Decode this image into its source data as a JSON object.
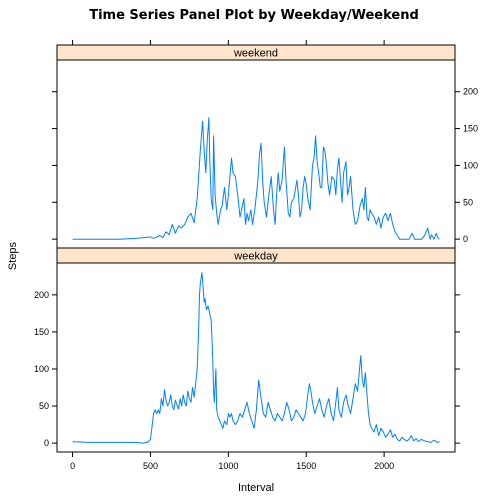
{
  "chart_data": {
    "type": "line",
    "title": "Time Series Panel Plot by Weekday/Weekend",
    "xlabel": "Interval",
    "ylabel": "Steps",
    "xlim": [
      -100,
      2455
    ],
    "ylim": [
      -12,
      243
    ],
    "x_ticks": [
      0,
      500,
      1000,
      1500,
      2000
    ],
    "y_ticks": [
      0,
      50,
      100,
      150,
      200
    ],
    "line_color": "#0080ff",
    "strip_color": "#ffe5cc",
    "layout": "two panels stacked, shared x axis; y tick labels alternate sides (weekday panel left, weekend panel right)",
    "panels": [
      {
        "name": "weekend",
        "points": [
          [
            0,
            0
          ],
          [
            100,
            0
          ],
          [
            200,
            0
          ],
          [
            300,
            0
          ],
          [
            400,
            1
          ],
          [
            450,
            2
          ],
          [
            500,
            3
          ],
          [
            520,
            1
          ],
          [
            540,
            3
          ],
          [
            560,
            5
          ],
          [
            580,
            2
          ],
          [
            600,
            10
          ],
          [
            620,
            6
          ],
          [
            640,
            20
          ],
          [
            660,
            8
          ],
          [
            680,
            18
          ],
          [
            700,
            15
          ],
          [
            720,
            20
          ],
          [
            740,
            30
          ],
          [
            760,
            35
          ],
          [
            780,
            22
          ],
          [
            800,
            55
          ],
          [
            820,
            120
          ],
          [
            835,
            160
          ],
          [
            845,
            120
          ],
          [
            855,
            90
          ],
          [
            865,
            135
          ],
          [
            875,
            165
          ],
          [
            880,
            110
          ],
          [
            890,
            55
          ],
          [
            900,
            40
          ],
          [
            905,
            140
          ],
          [
            915,
            60
          ],
          [
            925,
            35
          ],
          [
            935,
            20
          ],
          [
            950,
            40
          ],
          [
            960,
            45
          ],
          [
            975,
            70
          ],
          [
            990,
            40
          ],
          [
            1000,
            60
          ],
          [
            1010,
            85
          ],
          [
            1020,
            110
          ],
          [
            1030,
            90
          ],
          [
            1045,
            85
          ],
          [
            1060,
            60
          ],
          [
            1075,
            30
          ],
          [
            1090,
            45
          ],
          [
            1100,
            55
          ],
          [
            1110,
            20
          ],
          [
            1120,
            35
          ],
          [
            1130,
            25
          ],
          [
            1145,
            40
          ],
          [
            1155,
            20
          ],
          [
            1170,
            40
          ],
          [
            1180,
            60
          ],
          [
            1190,
            80
          ],
          [
            1200,
            115
          ],
          [
            1210,
            130
          ],
          [
            1220,
            80
          ],
          [
            1230,
            50
          ],
          [
            1245,
            30
          ],
          [
            1260,
            60
          ],
          [
            1275,
            85
          ],
          [
            1290,
            40
          ],
          [
            1300,
            20
          ],
          [
            1310,
            60
          ],
          [
            1320,
            90
          ],
          [
            1330,
            65
          ],
          [
            1345,
            80
          ],
          [
            1360,
            125
          ],
          [
            1370,
            80
          ],
          [
            1385,
            35
          ],
          [
            1395,
            30
          ],
          [
            1405,
            50
          ],
          [
            1420,
            55
          ],
          [
            1440,
            80
          ],
          [
            1450,
            60
          ],
          [
            1460,
            30
          ],
          [
            1470,
            40
          ],
          [
            1480,
            70
          ],
          [
            1490,
            85
          ],
          [
            1500,
            75
          ],
          [
            1510,
            55
          ],
          [
            1525,
            40
          ],
          [
            1540,
            100
          ],
          [
            1550,
            110
          ],
          [
            1560,
            140
          ],
          [
            1570,
            105
          ],
          [
            1580,
            90
          ],
          [
            1590,
            70
          ],
          [
            1600,
            70
          ],
          [
            1610,
            125
          ],
          [
            1620,
            120
          ],
          [
            1630,
            100
          ],
          [
            1640,
            75
          ],
          [
            1650,
            60
          ],
          [
            1665,
            85
          ],
          [
            1680,
            80
          ],
          [
            1690,
            60
          ],
          [
            1700,
            95
          ],
          [
            1710,
            110
          ],
          [
            1720,
            80
          ],
          [
            1730,
            50
          ],
          [
            1740,
            90
          ],
          [
            1755,
            105
          ],
          [
            1765,
            60
          ],
          [
            1775,
            70
          ],
          [
            1785,
            85
          ],
          [
            1800,
            40
          ],
          [
            1815,
            20
          ],
          [
            1830,
            25
          ],
          [
            1845,
            45
          ],
          [
            1860,
            55
          ],
          [
            1870,
            40
          ],
          [
            1880,
            70
          ],
          [
            1890,
            30
          ],
          [
            1900,
            25
          ],
          [
            1910,
            40
          ],
          [
            1920,
            35
          ],
          [
            1935,
            30
          ],
          [
            1950,
            20
          ],
          [
            1965,
            30
          ],
          [
            1980,
            15
          ],
          [
            1995,
            30
          ],
          [
            2010,
            35
          ],
          [
            2025,
            25
          ],
          [
            2040,
            35
          ],
          [
            2055,
            20
          ],
          [
            2070,
            10
          ],
          [
            2085,
            5
          ],
          [
            2100,
            0
          ],
          [
            2130,
            0
          ],
          [
            2160,
            0
          ],
          [
            2180,
            8
          ],
          [
            2195,
            0
          ],
          [
            2215,
            0
          ],
          [
            2240,
            0
          ],
          [
            2260,
            5
          ],
          [
            2280,
            15
          ],
          [
            2295,
            0
          ],
          [
            2305,
            6
          ],
          [
            2320,
            0
          ],
          [
            2335,
            8
          ],
          [
            2345,
            2
          ],
          [
            2355,
            0
          ]
        ]
      },
      {
        "name": "weekday",
        "points": [
          [
            0,
            2
          ],
          [
            100,
            1
          ],
          [
            200,
            1
          ],
          [
            300,
            1
          ],
          [
            350,
            1
          ],
          [
            400,
            1
          ],
          [
            450,
            0
          ],
          [
            480,
            1
          ],
          [
            500,
            5
          ],
          [
            510,
            22
          ],
          [
            520,
            40
          ],
          [
            530,
            45
          ],
          [
            540,
            40
          ],
          [
            550,
            45
          ],
          [
            560,
            40
          ],
          [
            570,
            60
          ],
          [
            580,
            50
          ],
          [
            590,
            72
          ],
          [
            600,
            58
          ],
          [
            610,
            50
          ],
          [
            620,
            55
          ],
          [
            630,
            65
          ],
          [
            640,
            50
          ],
          [
            650,
            45
          ],
          [
            660,
            58
          ],
          [
            670,
            52
          ],
          [
            680,
            46
          ],
          [
            690,
            60
          ],
          [
            700,
            50
          ],
          [
            710,
            65
          ],
          [
            720,
            55
          ],
          [
            730,
            50
          ],
          [
            740,
            70
          ],
          [
            750,
            60
          ],
          [
            760,
            55
          ],
          [
            770,
            75
          ],
          [
            780,
            62
          ],
          [
            790,
            80
          ],
          [
            800,
            100
          ],
          [
            810,
            160
          ],
          [
            815,
            200
          ],
          [
            820,
            215
          ],
          [
            830,
            230
          ],
          [
            835,
            220
          ],
          [
            840,
            205
          ],
          [
            845,
            190
          ],
          [
            850,
            195
          ],
          [
            860,
            180
          ],
          [
            870,
            185
          ],
          [
            880,
            175
          ],
          [
            890,
            165
          ],
          [
            895,
            140
          ],
          [
            900,
            110
          ],
          [
            905,
            70
          ],
          [
            910,
            55
          ],
          [
            920,
            100
          ],
          [
            925,
            45
          ],
          [
            935,
            35
          ],
          [
            945,
            30
          ],
          [
            955,
            25
          ],
          [
            965,
            20
          ],
          [
            975,
            30
          ],
          [
            990,
            25
          ],
          [
            1000,
            40
          ],
          [
            1010,
            35
          ],
          [
            1020,
            40
          ],
          [
            1030,
            30
          ],
          [
            1045,
            25
          ],
          [
            1060,
            30
          ],
          [
            1075,
            40
          ],
          [
            1090,
            35
          ],
          [
            1105,
            45
          ],
          [
            1120,
            55
          ],
          [
            1135,
            40
          ],
          [
            1150,
            30
          ],
          [
            1165,
            20
          ],
          [
            1180,
            45
          ],
          [
            1195,
            85
          ],
          [
            1210,
            60
          ],
          [
            1225,
            40
          ],
          [
            1240,
            35
          ],
          [
            1255,
            55
          ],
          [
            1270,
            45
          ],
          [
            1285,
            35
          ],
          [
            1300,
            30
          ],
          [
            1315,
            40
          ],
          [
            1330,
            35
          ],
          [
            1345,
            30
          ],
          [
            1360,
            40
          ],
          [
            1375,
            55
          ],
          [
            1390,
            45
          ],
          [
            1405,
            30
          ],
          [
            1420,
            35
          ],
          [
            1435,
            45
          ],
          [
            1450,
            40
          ],
          [
            1465,
            35
          ],
          [
            1480,
            30
          ],
          [
            1495,
            40
          ],
          [
            1510,
            65
          ],
          [
            1520,
            80
          ],
          [
            1530,
            70
          ],
          [
            1540,
            55
          ],
          [
            1555,
            40
          ],
          [
            1570,
            50
          ],
          [
            1585,
            60
          ],
          [
            1600,
            45
          ],
          [
            1615,
            35
          ],
          [
            1630,
            50
          ],
          [
            1645,
            60
          ],
          [
            1660,
            40
          ],
          [
            1675,
            30
          ],
          [
            1690,
            55
          ],
          [
            1700,
            75
          ],
          [
            1710,
            45
          ],
          [
            1725,
            35
          ],
          [
            1740,
            55
          ],
          [
            1755,
            65
          ],
          [
            1770,
            50
          ],
          [
            1785,
            40
          ],
          [
            1800,
            60
          ],
          [
            1815,
            80
          ],
          [
            1830,
            70
          ],
          [
            1840,
            95
          ],
          [
            1850,
            118
          ],
          [
            1860,
            85
          ],
          [
            1870,
            75
          ],
          [
            1880,
            95
          ],
          [
            1890,
            65
          ],
          [
            1900,
            40
          ],
          [
            1910,
            25
          ],
          [
            1920,
            20
          ],
          [
            1935,
            15
          ],
          [
            1950,
            25
          ],
          [
            1965,
            10
          ],
          [
            1980,
            20
          ],
          [
            1995,
            15
          ],
          [
            2010,
            8
          ],
          [
            2025,
            12
          ],
          [
            2040,
            18
          ],
          [
            2055,
            8
          ],
          [
            2070,
            12
          ],
          [
            2085,
            5
          ],
          [
            2100,
            3
          ],
          [
            2115,
            8
          ],
          [
            2130,
            5
          ],
          [
            2145,
            3
          ],
          [
            2160,
            5
          ],
          [
            2175,
            10
          ],
          [
            2190,
            3
          ],
          [
            2205,
            6
          ],
          [
            2220,
            2
          ],
          [
            2240,
            5
          ],
          [
            2260,
            3
          ],
          [
            2280,
            2
          ],
          [
            2300,
            1
          ],
          [
            2320,
            4
          ],
          [
            2340,
            1
          ],
          [
            2355,
            2
          ]
        ]
      }
    ]
  }
}
